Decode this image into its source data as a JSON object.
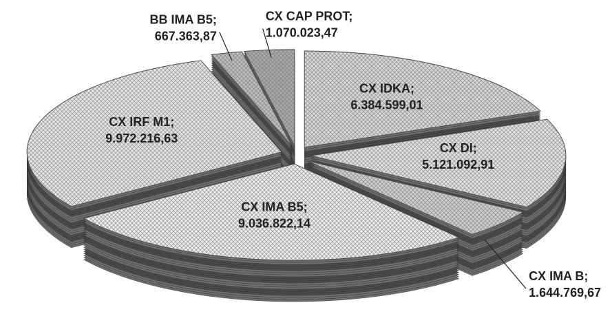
{
  "chart_data": {
    "type": "pie3d",
    "categories": [
      "CX IDKA;",
      "CX DI;",
      "CX IMA B;",
      "CX IMA B5;",
      "CX IRF M1;",
      "BB IMA B5;",
      "CX CAP PROT;"
    ],
    "values": [
      6384599.01,
      5121092.91,
      1644769.67,
      9036822.14,
      9972216.63,
      667363.87,
      1070023.47
    ],
    "value_labels": [
      "6.384.599,01",
      "5.121.092,91",
      "1.644.769,67",
      "9.036.822,14",
      "9.972.216,63",
      "667.363,87",
      "1.070.023,47"
    ],
    "colors": [
      "#d8d8d8",
      "#e2e2e2",
      "#cfcfcf",
      "#eeeeee",
      "#e6e6e6",
      "#bdbdbd",
      "#a8a8a8"
    ]
  }
}
